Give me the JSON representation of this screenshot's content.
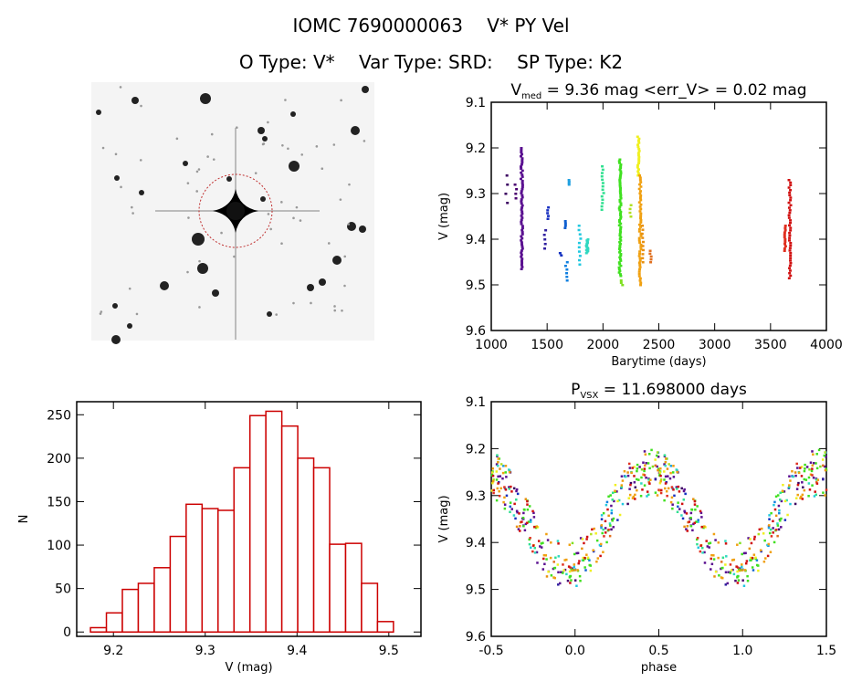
{
  "header": {
    "id": "IOMC 7690000063",
    "name": "V* PY Vel",
    "otype": "O Type: V*",
    "vartype": "Var Type: SRD:",
    "sptype": "SP Type: K2"
  },
  "chart_data": [
    {
      "type": "scatter",
      "name": "light-curve",
      "title_main": "V",
      "title_sub": "med",
      "title_rest": " = 9.36 mag <err_V> = 0.02 mag",
      "xlabel": "Barytime (days)",
      "ylabel": "V (mag)",
      "xlim": [
        1000,
        4000
      ],
      "ylim": [
        9.6,
        9.1
      ],
      "xticks": [
        "1000",
        "1500",
        "2000",
        "2500",
        "3000",
        "3500",
        "4000"
      ],
      "yticks": [
        "9.1",
        "9.2",
        "9.3",
        "9.4",
        "9.5",
        "9.6"
      ],
      "segments": [
        {
          "t": 1130,
          "vmin": 9.26,
          "vmax": 9.32,
          "n": 4,
          "color": "#3a0060"
        },
        {
          "t": 1210,
          "vmin": 9.28,
          "vmax": 9.31,
          "n": 4,
          "color": "#4a0070"
        },
        {
          "t": 1265,
          "vmin": 9.2,
          "vmax": 9.465,
          "n": 60,
          "color": "#5a1090"
        },
        {
          "t": 1475,
          "vmin": 9.38,
          "vmax": 9.42,
          "n": 5,
          "color": "#3020a0"
        },
        {
          "t": 1500,
          "vmin": 9.33,
          "vmax": 9.355,
          "n": 5,
          "color": "#1830c0"
        },
        {
          "t": 1615,
          "vmin": 9.43,
          "vmax": 9.435,
          "n": 2,
          "color": "#1030c0"
        },
        {
          "t": 1650,
          "vmin": 9.36,
          "vmax": 9.375,
          "n": 4,
          "color": "#1060d0"
        },
        {
          "t": 1665,
          "vmin": 9.45,
          "vmax": 9.49,
          "n": 6,
          "color": "#1080e0"
        },
        {
          "t": 1695,
          "vmin": 9.27,
          "vmax": 9.28,
          "n": 4,
          "color": "#20a0e0"
        },
        {
          "t": 1785,
          "vmin": 9.37,
          "vmax": 9.455,
          "n": 10,
          "color": "#20c8e0"
        },
        {
          "t": 1850,
          "vmin": 9.4,
          "vmax": 9.43,
          "n": 14,
          "color": "#30d8c0"
        },
        {
          "t": 1990,
          "vmin": 9.24,
          "vmax": 9.335,
          "n": 14,
          "color": "#30e090"
        },
        {
          "t": 2145,
          "vmin": 9.225,
          "vmax": 9.48,
          "n": 70,
          "color": "#40e020"
        },
        {
          "t": 2160,
          "vmin": 9.49,
          "vmax": 9.5,
          "n": 3,
          "color": "#80e020"
        },
        {
          "t": 2240,
          "vmin": 9.325,
          "vmax": 9.35,
          "n": 4,
          "color": "#b0e020"
        },
        {
          "t": 2310,
          "vmin": 9.175,
          "vmax": 9.26,
          "n": 20,
          "color": "#f0f020"
        },
        {
          "t": 2325,
          "vmin": 9.26,
          "vmax": 9.5,
          "n": 50,
          "color": "#f0a010"
        },
        {
          "t": 2345,
          "vmin": 9.37,
          "vmax": 9.45,
          "n": 10,
          "color": "#e89010"
        },
        {
          "t": 2420,
          "vmin": 9.425,
          "vmax": 9.45,
          "n": 5,
          "color": "#e07020"
        },
        {
          "t": 3625,
          "vmin": 9.37,
          "vmax": 9.425,
          "n": 12,
          "color": "#e03020"
        },
        {
          "t": 3665,
          "vmin": 9.27,
          "vmax": 9.485,
          "n": 40,
          "color": "#d01010"
        }
      ]
    },
    {
      "type": "bar",
      "name": "histogram",
      "xlabel": "V (mag)",
      "ylabel": "N",
      "xlim": [
        9.16,
        9.535
      ],
      "ylim": [
        -5,
        265
      ],
      "xticks": [
        "9.2",
        "9.3",
        "9.4",
        "9.5"
      ],
      "yticks": [
        "0",
        "50",
        "100",
        "150",
        "200",
        "250"
      ],
      "bin_start": 9.175,
      "bin_width": 0.01737,
      "values": [
        5,
        22,
        49,
        56,
        74,
        110,
        147,
        142,
        140,
        189,
        249,
        254,
        237,
        200,
        189,
        101,
        102,
        56,
        12
      ],
      "color": "#cc0000"
    },
    {
      "type": "scatter",
      "name": "phased-light-curve",
      "title_main": "P",
      "title_sub": "VSX",
      "title_rest": " = 11.698000 days",
      "period_days": 11.698,
      "xlabel": "phase",
      "ylabel": "V (mag)",
      "xlim": [
        -0.5,
        1.5
      ],
      "ylim": [
        9.6,
        9.1
      ],
      "xticks": [
        "-0.5",
        "0.0",
        "0.5",
        "1.0",
        "1.5"
      ],
      "yticks": [
        "9.1",
        "9.2",
        "9.3",
        "9.4",
        "9.5",
        "9.6"
      ]
    }
  ]
}
